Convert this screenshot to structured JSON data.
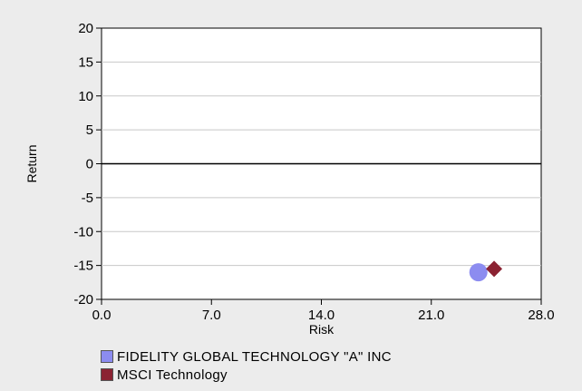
{
  "chart_data": {
    "type": "scatter",
    "title": "",
    "xlabel": "Risk",
    "ylabel": "Return",
    "xlim": [
      0,
      28
    ],
    "ylim": [
      -20,
      20
    ],
    "x_ticks": [
      "0.0",
      "7.0",
      "14.0",
      "21.0",
      "28.0"
    ],
    "y_ticks": [
      "20",
      "15",
      "10",
      "5",
      "0",
      "-5",
      "-10",
      "-15",
      "-20"
    ],
    "grid": true,
    "legend_position": "bottom-left",
    "series": [
      {
        "name": "FIDELITY GLOBAL TECHNOLOGY \"A\" INC",
        "marker": "circle",
        "color": "#8c8cf0",
        "points": [
          {
            "x": 24.0,
            "y": -16.0
          }
        ]
      },
      {
        "name": "MSCI Technology",
        "marker": "diamond",
        "color": "#8b2232",
        "points": [
          {
            "x": 25.0,
            "y": -15.5
          }
        ]
      }
    ]
  }
}
